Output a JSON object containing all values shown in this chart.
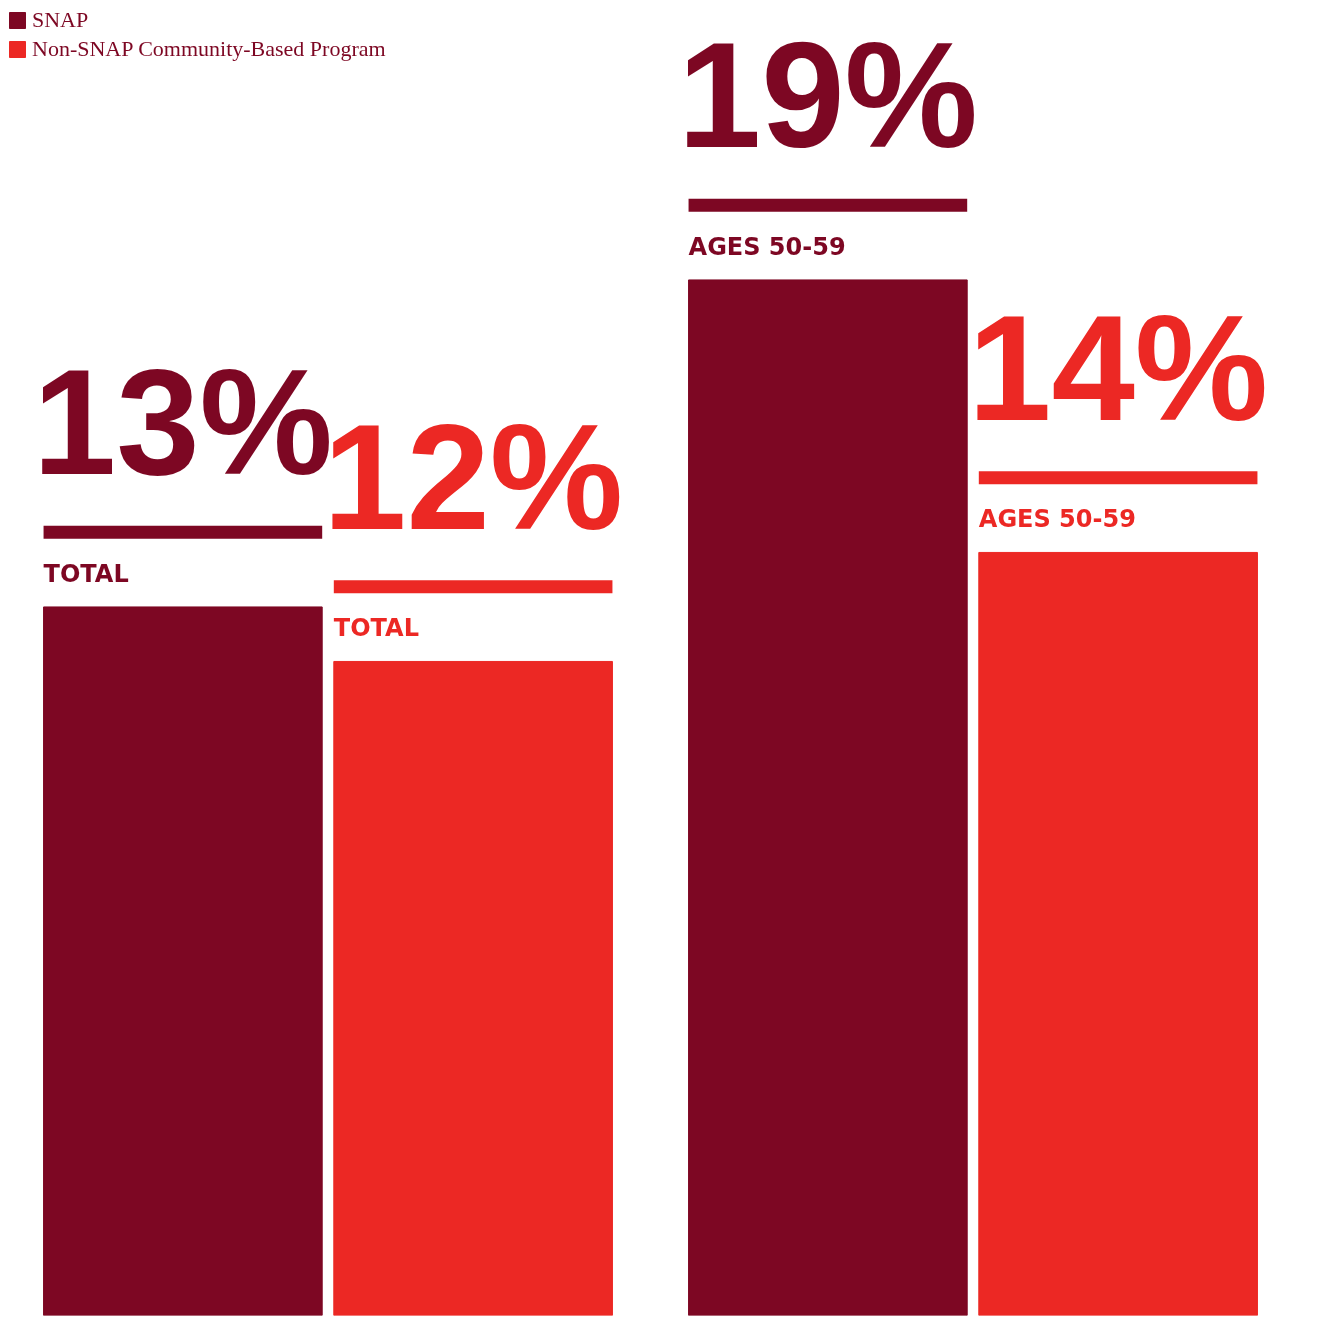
{
  "chart_data": {
    "type": "bar",
    "categories": [
      "TOTAL",
      "AGES 50-59"
    ],
    "series": [
      {
        "name": "SNAP",
        "color": "#7d0723",
        "values": [
          13,
          19
        ],
        "value_labels": [
          "13%",
          "19%"
        ]
      },
      {
        "name": "Non-SNAP Community-Based Program",
        "color": "#ec2824",
        "values": [
          12,
          14
        ],
        "value_labels": [
          "12%",
          "14%"
        ]
      }
    ],
    "tick_labels": false,
    "grid": false,
    "legend": "top left"
  }
}
